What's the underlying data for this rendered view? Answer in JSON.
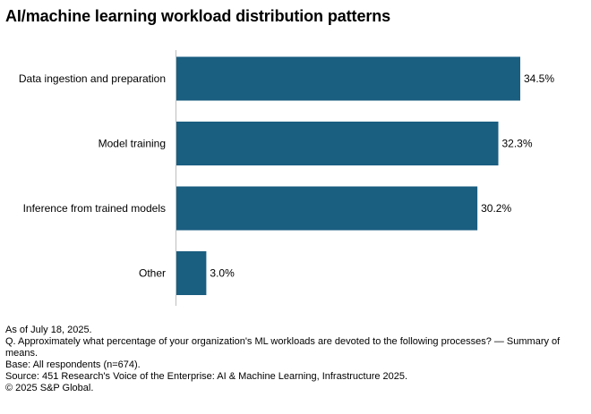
{
  "title": "AI/machine learning workload distribution patterns",
  "chart_data": {
    "type": "bar",
    "orientation": "horizontal",
    "categories": [
      "Data ingestion and preparation",
      "Model training",
      "Inference from trained models",
      "Other"
    ],
    "values": [
      34.5,
      32.3,
      30.2,
      3.0
    ],
    "data_labels": [
      "34.5%",
      "32.3%",
      "30.2%",
      "3.0%"
    ],
    "xlim": [
      0,
      40
    ],
    "grid": false,
    "legend": "none",
    "bar_color": "#1a5e80"
  },
  "footnotes": {
    "date": "As of July 18, 2025.",
    "question": "Q. Approximately what percentage of your organization's ML workloads are devoted to the following processes? — Summary of means.",
    "base": "Base: All respondents (n=674).",
    "source": "Source: 451 Research's Voice of the Enterprise: AI & Machine Learning, Infrastructure 2025.",
    "copyright": "© 2025 S&P Global."
  }
}
